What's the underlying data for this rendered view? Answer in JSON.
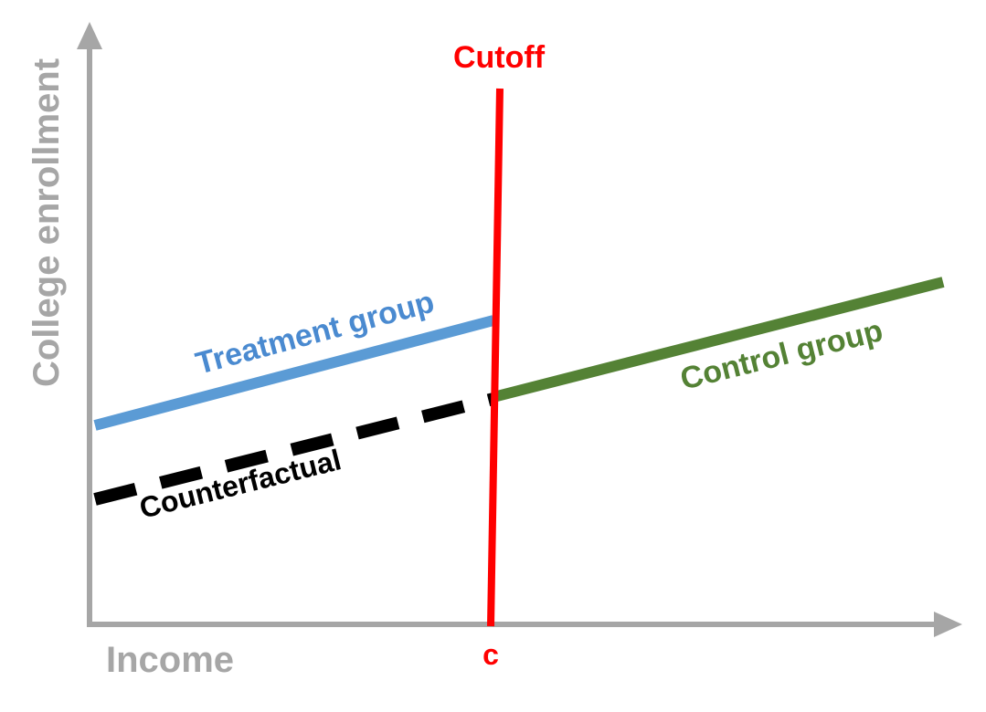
{
  "diagram": {
    "axes": {
      "x_label": "Income",
      "y_label": "College enrollment",
      "color": "#a6a6a6"
    },
    "cutoff": {
      "title": "Cutoff",
      "tick_label": "c",
      "color": "#ff0000"
    },
    "lines": {
      "treatment": {
        "label": "Treatment group",
        "color": "#5b9bd5"
      },
      "control": {
        "label": "Control group",
        "color": "#548235"
      },
      "counterfactual": {
        "label": "Counterfactual",
        "color": "#000000",
        "style": "dashed"
      }
    }
  }
}
